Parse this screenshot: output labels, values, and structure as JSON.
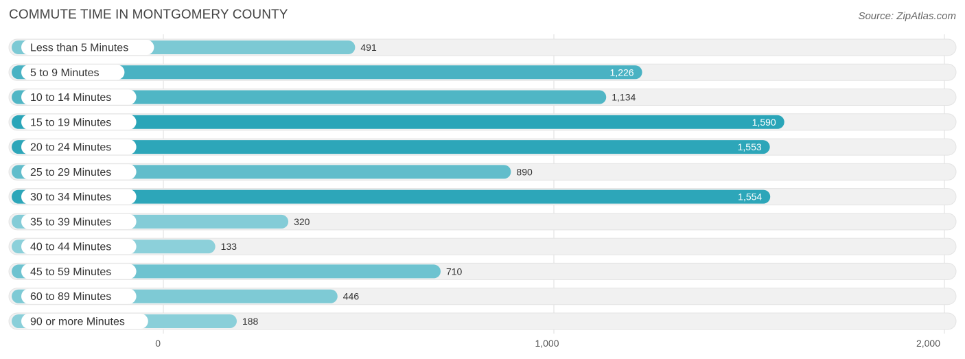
{
  "chart_data": {
    "type": "bar",
    "orientation": "horizontal",
    "title": "COMMUTE TIME IN MONTGOMERY COUNTY",
    "source": "Source: ZipAtlas.com",
    "categories": [
      "Less than 5 Minutes",
      "5 to 9 Minutes",
      "10 to 14 Minutes",
      "15 to 19 Minutes",
      "20 to 24 Minutes",
      "25 to 29 Minutes",
      "30 to 34 Minutes",
      "35 to 39 Minutes",
      "40 to 44 Minutes",
      "45 to 59 Minutes",
      "60 to 89 Minutes",
      "90 or more Minutes"
    ],
    "values": [
      491,
      1226,
      1134,
      1590,
      1553,
      890,
      1554,
      320,
      133,
      710,
      446,
      188
    ],
    "value_labels": [
      "491",
      "1,226",
      "1,134",
      "1,590",
      "1,553",
      "890",
      "1,554",
      "320",
      "133",
      "710",
      "446",
      "188"
    ],
    "xlim": [
      0,
      2000
    ],
    "xticks": [
      0,
      1000,
      2000
    ],
    "xtick_labels": [
      "0",
      "1,000",
      "2,000"
    ],
    "grid": true,
    "colors": {
      "low": "#8fd1db",
      "high": "#2aa5b8",
      "track": "#f1f1f1",
      "track_border": "#e3e3e3",
      "grid": "#dddddd"
    }
  }
}
